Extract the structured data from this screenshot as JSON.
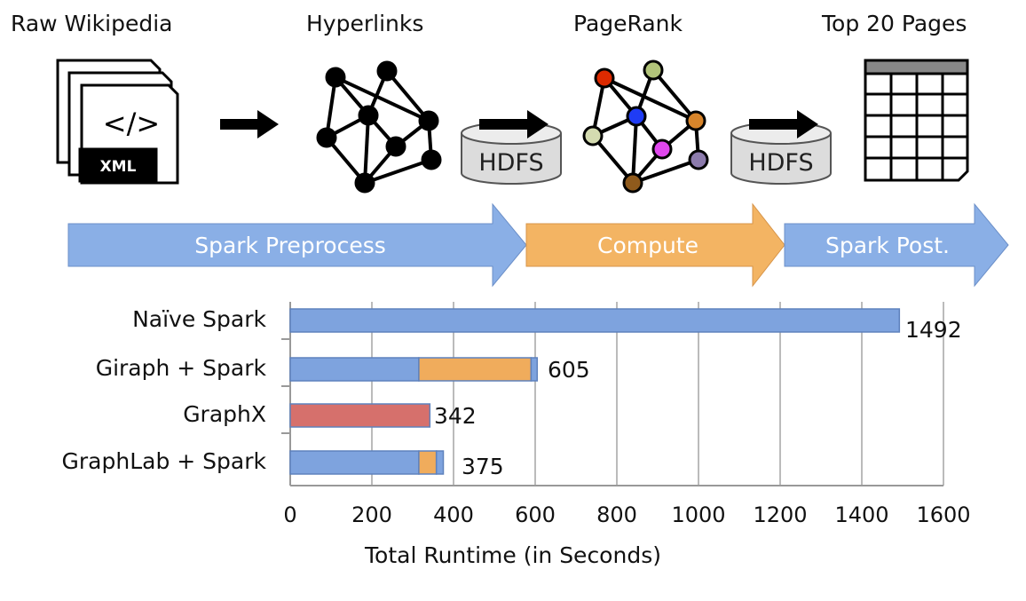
{
  "pipeline": {
    "stages": [
      "Raw Wikipedia",
      "Hyperlinks",
      "PageRank",
      "Top 20 Pages"
    ],
    "file_badge": "XML",
    "file_code": "</>",
    "storage_label": "HDFS",
    "phases": [
      {
        "label": "Spark Preprocess",
        "color": "#7ea3de"
      },
      {
        "label": "Compute",
        "color": "#f0a95a"
      },
      {
        "label": "Spark Post.",
        "color": "#7ea3de"
      }
    ],
    "pagerank_node_colors": [
      "#dd2a00",
      "#b2c47a",
      "#1f3cf5",
      "#d8852b",
      "#d4dbb0",
      "#e047ee",
      "#8c7bac",
      "#8f5a1c"
    ]
  },
  "chart_data": {
    "type": "bar",
    "orientation": "horizontal",
    "stacked": true,
    "categories": [
      "Naïve Spark",
      "Giraph + Spark",
      "GraphX",
      "GraphLab + Spark"
    ],
    "segments": [
      [
        {
          "phase": "Spark Preprocess",
          "value": 1492
        }
      ],
      [
        {
          "phase": "Spark Preprocess",
          "value": 315
        },
        {
          "phase": "Compute",
          "value": 275
        },
        {
          "phase": "Spark Post.",
          "value": 15
        }
      ],
      [
        {
          "phase": "GraphX",
          "value": 342
        }
      ],
      [
        {
          "phase": "Spark Preprocess",
          "value": 315
        },
        {
          "phase": "Compute",
          "value": 43
        },
        {
          "phase": "Spark Post.",
          "value": 17
        }
      ]
    ],
    "totals": [
      1492,
      605,
      342,
      375
    ],
    "data_labels": [
      "1492",
      "605",
      "342",
      "375"
    ],
    "colors": {
      "Spark Preprocess": "#7ea3de",
      "Compute": "#f0ac5c",
      "Spark Post.": "#7ea3de",
      "GraphX": "#d6706c"
    },
    "xlabel": "Total Runtime (in Seconds)",
    "xlim": [
      0,
      1600
    ],
    "xticks": [
      "0",
      "200",
      "400",
      "600",
      "800",
      "1000",
      "1200",
      "1400",
      "1600"
    ],
    "grid": "vertical"
  }
}
